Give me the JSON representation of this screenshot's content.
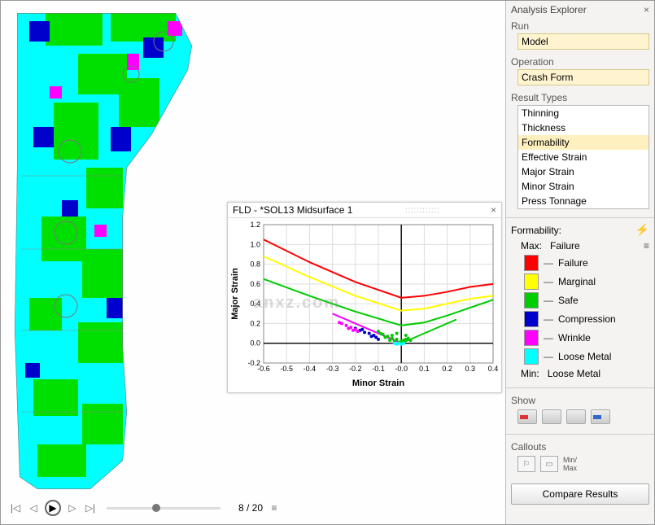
{
  "sidebar": {
    "title": "Analysis Explorer",
    "run_label": "Run",
    "run_value": "Model",
    "operation_label": "Operation",
    "operation_value": "Crash Form",
    "result_types_label": "Result Types",
    "result_types": [
      "Thinning",
      "Thickness",
      "Formability",
      "Effective Strain",
      "Major Strain",
      "Minor Strain",
      "Press Tonnage"
    ],
    "result_selected_index": 2,
    "legend_title": "Formability:",
    "max_label": "Max:",
    "max_value": "Failure",
    "min_label": "Min:",
    "min_value": "Loose Metal",
    "legend": [
      {
        "label": "Failure",
        "color": "#ff0000"
      },
      {
        "label": "Marginal",
        "color": "#ffff00"
      },
      {
        "label": "Safe",
        "color": "#00cc00"
      },
      {
        "label": "Compression",
        "color": "#0000cc"
      },
      {
        "label": "Wrinkle",
        "color": "#ff00ff"
      },
      {
        "label": "Loose Metal",
        "color": "#00ffff"
      }
    ],
    "show_label": "Show",
    "callouts_label": "Callouts",
    "minmax_label": "Min/\nMax",
    "compare_label": "Compare Results"
  },
  "playback": {
    "frame_label": "8 / 20"
  },
  "fld": {
    "title": "FLD - *SOL13 Midsurface 1",
    "type": "scatter+lines",
    "xlabel": "Minor Strain",
    "ylabel": "Major Strain",
    "xlim": [
      -0.6,
      0.4
    ],
    "ylim": [
      -0.2,
      1.2
    ],
    "xtick_step": 0.1,
    "ytick_step": 0.2,
    "label_fontsize": 11,
    "tick_fontsize": 9,
    "background_color": "#ffffff",
    "grid_color": "#dddddd",
    "axis_color": "#000000",
    "curves": [
      {
        "name": "Failure",
        "color": "#ff0000",
        "width": 2,
        "pts": [
          [
            -0.6,
            1.05
          ],
          [
            -0.4,
            0.82
          ],
          [
            -0.2,
            0.62
          ],
          [
            0.0,
            0.46
          ],
          [
            0.1,
            0.48
          ],
          [
            0.2,
            0.52
          ],
          [
            0.3,
            0.57
          ],
          [
            0.4,
            0.6
          ]
        ]
      },
      {
        "name": "Marginal",
        "color": "#ffff00",
        "width": 2,
        "pts": [
          [
            -0.6,
            0.88
          ],
          [
            -0.4,
            0.67
          ],
          [
            -0.2,
            0.48
          ],
          [
            0.0,
            0.33
          ],
          [
            0.1,
            0.35
          ],
          [
            0.2,
            0.4
          ],
          [
            0.3,
            0.45
          ],
          [
            0.4,
            0.48
          ]
        ]
      },
      {
        "name": "SafeUpper",
        "color": "#00cc00",
        "width": 2,
        "pts": [
          [
            -0.6,
            0.65
          ],
          [
            -0.4,
            0.48
          ],
          [
            -0.2,
            0.32
          ],
          [
            0.0,
            0.18
          ],
          [
            0.1,
            0.21
          ],
          [
            0.2,
            0.28
          ],
          [
            0.3,
            0.36
          ],
          [
            0.4,
            0.44
          ]
        ]
      },
      {
        "name": "SafeLower",
        "color": "#00cc00",
        "width": 2,
        "pts": [
          [
            -0.24,
            0.24
          ],
          [
            -0.12,
            0.12
          ],
          [
            0.0,
            0.0
          ],
          [
            0.12,
            0.12
          ],
          [
            0.24,
            0.24
          ]
        ]
      },
      {
        "name": "Wrinkle",
        "color": "#ff00ff",
        "width": 2,
        "pts": [
          [
            -0.3,
            0.3
          ],
          [
            -0.15,
            0.15
          ],
          [
            0.0,
            0.0
          ]
        ]
      }
    ],
    "scatter": [
      {
        "color": "#00cc00",
        "pts": [
          [
            -0.05,
            0.03
          ],
          [
            -0.04,
            0.05
          ],
          [
            -0.06,
            0.07
          ],
          [
            -0.02,
            0.04
          ],
          [
            -0.03,
            0.02
          ],
          [
            -0.07,
            0.06
          ],
          [
            -0.08,
            0.09
          ],
          [
            -0.01,
            0.01
          ],
          [
            0.0,
            0.02
          ],
          [
            0.01,
            0.03
          ],
          [
            0.02,
            0.04
          ],
          [
            -0.09,
            0.1
          ],
          [
            -0.1,
            0.12
          ],
          [
            -0.04,
            0.08
          ],
          [
            0.03,
            0.05
          ],
          [
            0.04,
            0.03
          ],
          [
            0.02,
            0.08
          ],
          [
            -0.02,
            0.1
          ]
        ]
      },
      {
        "color": "#0000cc",
        "pts": [
          [
            -0.12,
            0.08
          ],
          [
            -0.14,
            0.1
          ],
          [
            -0.16,
            0.11
          ],
          [
            -0.18,
            0.13
          ],
          [
            -0.11,
            0.06
          ],
          [
            -0.13,
            0.07
          ],
          [
            -0.1,
            0.04
          ],
          [
            -0.17,
            0.14
          ],
          [
            -0.2,
            0.15
          ]
        ]
      },
      {
        "color": "#ff00ff",
        "pts": [
          [
            -0.2,
            0.14
          ],
          [
            -0.22,
            0.16
          ],
          [
            -0.24,
            0.18
          ],
          [
            -0.26,
            0.2
          ],
          [
            -0.19,
            0.12
          ],
          [
            -0.21,
            0.13
          ],
          [
            -0.23,
            0.15
          ],
          [
            -0.27,
            0.21
          ]
        ]
      },
      {
        "color": "#00ffff",
        "pts": [
          [
            -0.02,
            -0.01
          ],
          [
            -0.01,
            0.0
          ],
          [
            0.0,
            -0.01
          ],
          [
            0.01,
            0.0
          ],
          [
            -0.03,
            0.0
          ]
        ]
      }
    ]
  },
  "model": {
    "base_color": "#00ffff",
    "patches": {
      "safe": "#00e000",
      "compression": "#0000cc",
      "wrinkle": "#ff00ff",
      "loose": "#00ffff"
    }
  },
  "watermark": "anxz.com"
}
